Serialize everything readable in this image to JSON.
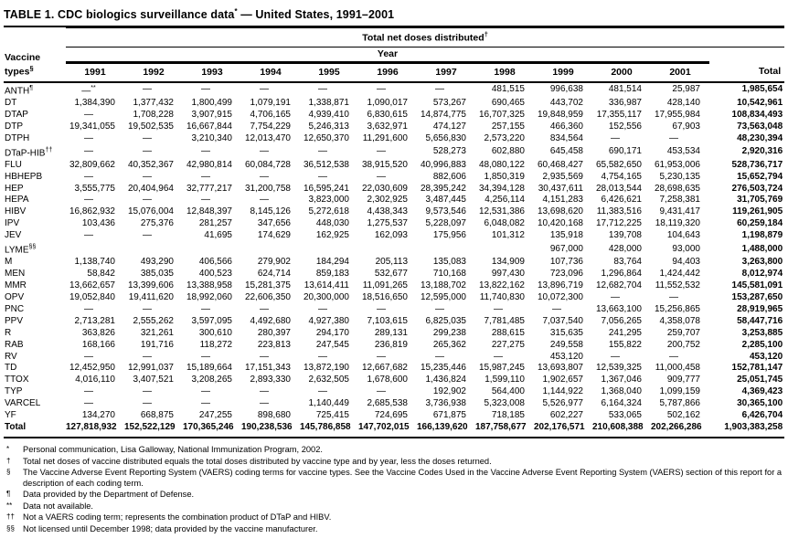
{
  "title": {
    "pre": "TABLE 1. CDC biologics surveillance data",
    "sup": "*",
    "post": " — United States, 1991–2001"
  },
  "table": {
    "group_header": "Total net doses distributed",
    "group_header_sup": "†",
    "year_header": "Year",
    "row_header_line1": "Vaccine",
    "row_header_line2": "types",
    "row_header_sup": "§",
    "columns": [
      "1991",
      "1992",
      "1993",
      "1994",
      "1995",
      "1996",
      "1997",
      "1998",
      "1999",
      "2000",
      "2001",
      "Total"
    ],
    "rows": [
      {
        "label": "ANTH",
        "sup": "¶",
        "values": [
          "—**",
          "—",
          "—",
          "—",
          "—",
          "—",
          "—",
          "481,515",
          "996,638",
          "481,514",
          "25,987",
          "1,985,654"
        ]
      },
      {
        "label": "DT",
        "values": [
          "1,384,390",
          "1,377,432",
          "1,800,499",
          "1,079,191",
          "1,338,871",
          "1,090,017",
          "573,267",
          "690,465",
          "443,702",
          "336,987",
          "428,140",
          "10,542,961"
        ]
      },
      {
        "label": "DTAP",
        "values": [
          "—",
          "1,708,228",
          "3,907,915",
          "4,706,165",
          "4,939,410",
          "6,830,615",
          "14,874,775",
          "16,707,325",
          "19,848,959",
          "17,355,117",
          "17,955,984",
          "108,834,493"
        ]
      },
      {
        "label": "DTP",
        "values": [
          "19,341,055",
          "19,502,535",
          "16,667,844",
          "7,754,229",
          "5,246,313",
          "3,632,971",
          "474,127",
          "257,155",
          "466,360",
          "152,556",
          "67,903",
          "73,563,048"
        ]
      },
      {
        "label": "DTPH",
        "values": [
          "—",
          "—",
          "3,210,340",
          "12,013,470",
          "12,650,370",
          "11,291,600",
          "5,656,830",
          "2,573,220",
          "834,564",
          "—",
          "—",
          "48,230,394"
        ]
      },
      {
        "label": "DTaP-HIB",
        "sup": "††",
        "values": [
          "—",
          "—",
          "—",
          "—",
          "—",
          "—",
          "528,273",
          "602,880",
          "645,458",
          "690,171",
          "453,534",
          "2,920,316"
        ]
      },
      {
        "label": "FLU",
        "values": [
          "32,809,662",
          "40,352,367",
          "42,980,814",
          "60,084,728",
          "36,512,538",
          "38,915,520",
          "40,996,883",
          "48,080,122",
          "60,468,427",
          "65,582,650",
          "61,953,006",
          "528,736,717"
        ]
      },
      {
        "label": "HBHEPB",
        "values": [
          "—",
          "—",
          "—",
          "—",
          "—",
          "—",
          "882,606",
          "1,850,319",
          "2,935,569",
          "4,754,165",
          "5,230,135",
          "15,652,794"
        ]
      },
      {
        "label": "HEP",
        "values": [
          "3,555,775",
          "20,404,964",
          "32,777,217",
          "31,200,758",
          "16,595,241",
          "22,030,609",
          "28,395,242",
          "34,394,128",
          "30,437,611",
          "28,013,544",
          "28,698,635",
          "276,503,724"
        ]
      },
      {
        "label": "HEPA",
        "values": [
          "—",
          "—",
          "—",
          "—",
          "3,823,000",
          "2,302,925",
          "3,487,445",
          "4,256,114",
          "4,151,283",
          "6,426,621",
          "7,258,381",
          "31,705,769"
        ]
      },
      {
        "label": "HIBV",
        "values": [
          "16,862,932",
          "15,076,004",
          "12,848,397",
          "8,145,126",
          "5,272,618",
          "4,438,343",
          "9,573,546",
          "12,531,386",
          "13,698,620",
          "11,383,516",
          "9,431,417",
          "119,261,905"
        ]
      },
      {
        "label": "IPV",
        "values": [
          "103,436",
          "275,376",
          "281,257",
          "347,656",
          "448,030",
          "1,275,537",
          "5,228,097",
          "6,048,082",
          "10,420,168",
          "17,712,225",
          "18,119,320",
          "60,259,184"
        ]
      },
      {
        "label": "JEV",
        "values": [
          "—",
          "—",
          "41,695",
          "174,629",
          "162,925",
          "162,093",
          "175,956",
          "101,312",
          "135,918",
          "139,708",
          "104,643",
          "1,198,879"
        ]
      },
      {
        "label": "LYME",
        "sup": "§§",
        "values": [
          "",
          "",
          "",
          "",
          "",
          "",
          "",
          "",
          "967,000",
          "428,000",
          "93,000",
          "1,488,000"
        ]
      },
      {
        "label": "M",
        "values": [
          "1,138,740",
          "493,290",
          "406,566",
          "279,902",
          "184,294",
          "205,113",
          "135,083",
          "134,909",
          "107,736",
          "83,764",
          "94,403",
          "3,263,800"
        ]
      },
      {
        "label": "MEN",
        "values": [
          "58,842",
          "385,035",
          "400,523",
          "624,714",
          "859,183",
          "532,677",
          "710,168",
          "997,430",
          "723,096",
          "1,296,864",
          "1,424,442",
          "8,012,974"
        ]
      },
      {
        "label": "MMR",
        "values": [
          "13,662,657",
          "13,399,606",
          "13,388,958",
          "15,281,375",
          "13,614,411",
          "11,091,265",
          "13,188,702",
          "13,822,162",
          "13,896,719",
          "12,682,704",
          "11,552,532",
          "145,581,091"
        ]
      },
      {
        "label": "OPV",
        "values": [
          "19,052,840",
          "19,411,620",
          "18,992,060",
          "22,606,350",
          "20,300,000",
          "18,516,650",
          "12,595,000",
          "11,740,830",
          "10,072,300",
          "—",
          "—",
          "153,287,650"
        ]
      },
      {
        "label": "PNC",
        "values": [
          "—",
          "—",
          "—",
          "—",
          "—",
          "—",
          "—",
          "—",
          "—",
          "13,663,100",
          "15,256,865",
          "28,919,965"
        ]
      },
      {
        "label": "PPV",
        "values": [
          "2,713,281",
          "2,555,262",
          "3,597,095",
          "4,492,680",
          "4,927,380",
          "7,103,615",
          "6,825,035",
          "7,781,485",
          "7,037,540",
          "7,056,265",
          "4,358,078",
          "58,447,716"
        ]
      },
      {
        "label": "R",
        "values": [
          "363,826",
          "321,261",
          "300,610",
          "280,397",
          "294,170",
          "289,131",
          "299,238",
          "288,615",
          "315,635",
          "241,295",
          "259,707",
          "3,253,885"
        ]
      },
      {
        "label": "RAB",
        "values": [
          "168,166",
          "191,716",
          "118,272",
          "223,813",
          "247,545",
          "236,819",
          "265,362",
          "227,275",
          "249,558",
          "155,822",
          "200,752",
          "2,285,100"
        ]
      },
      {
        "label": "RV",
        "values": [
          "—",
          "—",
          "—",
          "—",
          "—",
          "—",
          "—",
          "—",
          "453,120",
          "—",
          "—",
          "453,120"
        ]
      },
      {
        "label": "TD",
        "values": [
          "12,452,950",
          "12,991,037",
          "15,189,664",
          "17,151,343",
          "13,872,190",
          "12,667,682",
          "15,235,446",
          "15,987,245",
          "13,693,807",
          "12,539,325",
          "11,000,458",
          "152,781,147"
        ]
      },
      {
        "label": "TTOX",
        "values": [
          "4,016,110",
          "3,407,521",
          "3,208,265",
          "2,893,330",
          "2,632,505",
          "1,678,600",
          "1,436,824",
          "1,599,110",
          "1,902,657",
          "1,367,046",
          "909,777",
          "25,051,745"
        ]
      },
      {
        "label": "TYP",
        "values": [
          "—",
          "—",
          "—",
          "—",
          "—",
          "—",
          "192,902",
          "564,400",
          "1,144,922",
          "1,368,040",
          "1,099,159",
          "4,369,423"
        ]
      },
      {
        "label": "VARCEL",
        "values": [
          "—",
          "—",
          "—",
          "—",
          "1,140,449",
          "2,685,538",
          "3,736,938",
          "5,323,008",
          "5,526,977",
          "6,164,324",
          "5,787,866",
          "30,365,100"
        ]
      },
      {
        "label": "YF",
        "values": [
          "134,270",
          "668,875",
          "247,255",
          "898,680",
          "725,415",
          "724,695",
          "671,875",
          "718,185",
          "602,227",
          "533,065",
          "502,162",
          "6,426,704"
        ]
      },
      {
        "label": "Total",
        "bold": true,
        "values": [
          "127,818,932",
          "152,522,129",
          "170,365,246",
          "190,238,536",
          "145,786,858",
          "147,702,015",
          "166,139,620",
          "187,758,677",
          "202,176,571",
          "210,608,388",
          "202,266,286",
          "1,903,383,258"
        ]
      }
    ]
  },
  "footnotes": [
    {
      "marker": "*",
      "text": "Personal communication, Lisa Galloway, National Immunization Program, 2002."
    },
    {
      "marker": "†",
      "text": "Total net doses of vaccine distributed equals the total doses distributed by vaccine type and by year, less the doses returned."
    },
    {
      "marker": "§",
      "text": "The Vaccine Adverse Event Reporting System (VAERS) coding terms for vaccine types. See the Vaccine Codes Used in the Vaccine Adverse Event Reporting System (VAERS) section of this report for a description of each coding term."
    },
    {
      "marker": "¶",
      "text": "Data provided by the Department of Defense."
    },
    {
      "marker": "**",
      "text": "Data not available."
    },
    {
      "marker": "††",
      "text": "Not a VAERS coding term; represents the combination product of DTaP and HIBV."
    },
    {
      "marker": "§§",
      "text": "Not licensed until December 1998; data provided by the vaccine manufacturer."
    }
  ]
}
